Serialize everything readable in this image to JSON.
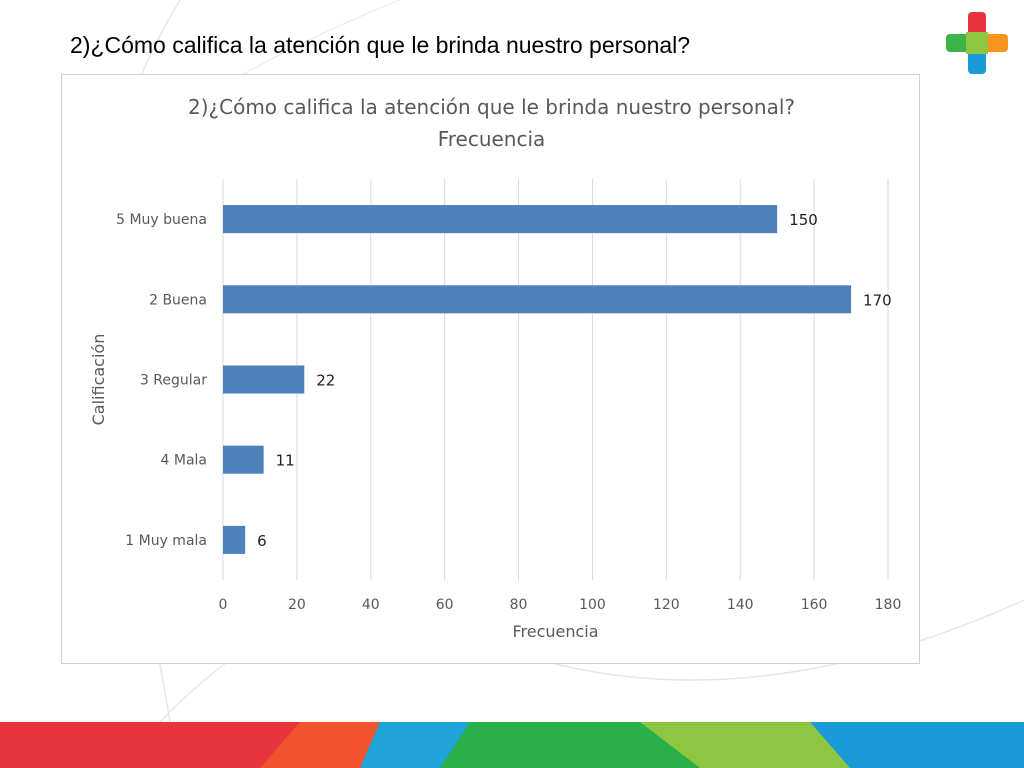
{
  "slide": {
    "title": "2)¿Cómo califica la atención que le brinda nuestro personal?"
  },
  "colors": {
    "bar": "#4f81bd",
    "grid": "#d9d9d9",
    "text": "#595959",
    "band": [
      "#e8343c",
      "#f0532d",
      "#1fa3d8",
      "#2ab04a",
      "#8ec641",
      "#1a9ad6"
    ],
    "logo": [
      "#e8343c",
      "#f7941d",
      "#1a9ad6",
      "#39b54a"
    ]
  },
  "logo": {
    "icon": "cross-logo-icon"
  },
  "chart_data": {
    "type": "bar",
    "orientation": "horizontal",
    "title": "2)¿Cómo califica la atención que le brinda nuestro personal?",
    "subtitle": "Frecuencia",
    "xlabel": "Frecuencia",
    "ylabel": "Calificación",
    "categories": [
      "5 Muy buena",
      "2 Buena",
      "3 Regular",
      "4 Mala",
      "1 Muy mala"
    ],
    "values": [
      150,
      170,
      22,
      11,
      6
    ],
    "data_labels": [
      "150",
      "170",
      "22",
      "11",
      "6"
    ],
    "xlim": [
      0,
      180
    ],
    "xticks": [
      0,
      20,
      40,
      60,
      80,
      100,
      120,
      140,
      160,
      180
    ],
    "xtick_labels": [
      "0",
      "20",
      "40",
      "60",
      "80",
      "100",
      "120",
      "140",
      "160",
      "180"
    ],
    "grid": true,
    "legend": "none"
  }
}
